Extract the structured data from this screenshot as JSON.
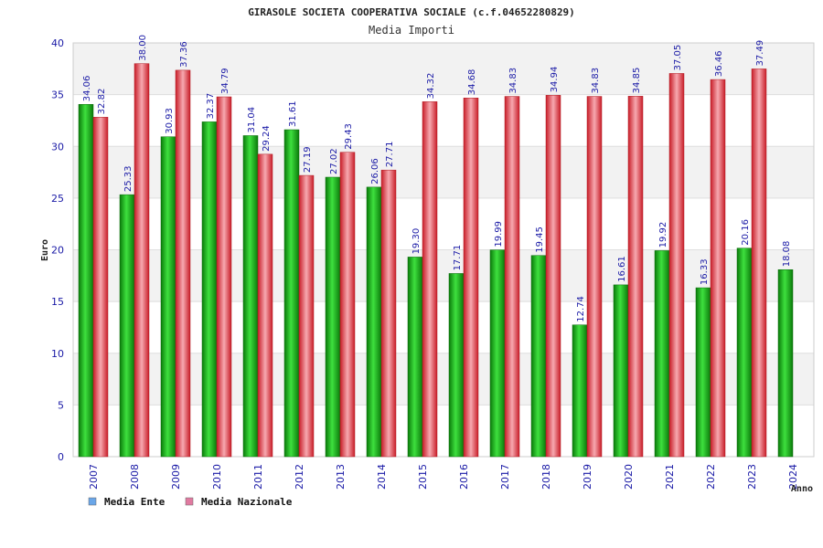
{
  "chart_data": {
    "type": "bar",
    "title": "GIRASOLE SOCIETA COOPERATIVA SOCIALE (c.f.04652280829)",
    "subtitle": "Media Importi",
    "ylabel": "Euro",
    "xlabel": "Anno",
    "ylim": [
      0,
      40
    ],
    "yticks": [
      "0",
      "5",
      "10",
      "15",
      "20",
      "25",
      "30",
      "35",
      "40"
    ],
    "grid": true,
    "legend_position": "bottom-left",
    "categories": [
      "2007",
      "2008",
      "2009",
      "2010",
      "2011",
      "2012",
      "2013",
      "2014",
      "2015",
      "2016",
      "2017",
      "2018",
      "2019",
      "2020",
      "2021",
      "2022",
      "2023",
      "2024"
    ],
    "series": [
      {
        "name": "Media Ente",
        "color": "#22b822",
        "legend_color": "#6aa6e8",
        "values": [
          34.06,
          25.33,
          30.93,
          32.37,
          31.04,
          31.61,
          27.02,
          26.06,
          19.3,
          17.71,
          19.99,
          19.45,
          12.74,
          16.61,
          19.92,
          16.33,
          20.16,
          18.08
        ],
        "labels": [
          "34.06",
          "25.33",
          "30.93",
          "32.37",
          "31.04",
          "31.61",
          "27.02",
          "26.06",
          "19.30",
          "17.71",
          "19.99",
          "19.45",
          "12.74",
          "16.61",
          "19.92",
          "16.33",
          "20.16",
          "18.08"
        ]
      },
      {
        "name": "Media Nazionale",
        "color": "#e8303a",
        "legend_color": "#e07aa0",
        "values": [
          32.82,
          38.0,
          37.36,
          34.79,
          29.24,
          27.19,
          29.43,
          27.71,
          34.32,
          34.68,
          34.83,
          34.94,
          34.83,
          34.85,
          37.05,
          36.46,
          37.49,
          null
        ],
        "labels": [
          "32.82",
          "38.00",
          "37.36",
          "34.79",
          "29.24",
          "27.19",
          "29.43",
          "27.71",
          "34.32",
          "34.68",
          "34.83",
          "34.94",
          "34.83",
          "34.85",
          "37.05",
          "36.46",
          "37.49",
          null
        ]
      }
    ]
  }
}
